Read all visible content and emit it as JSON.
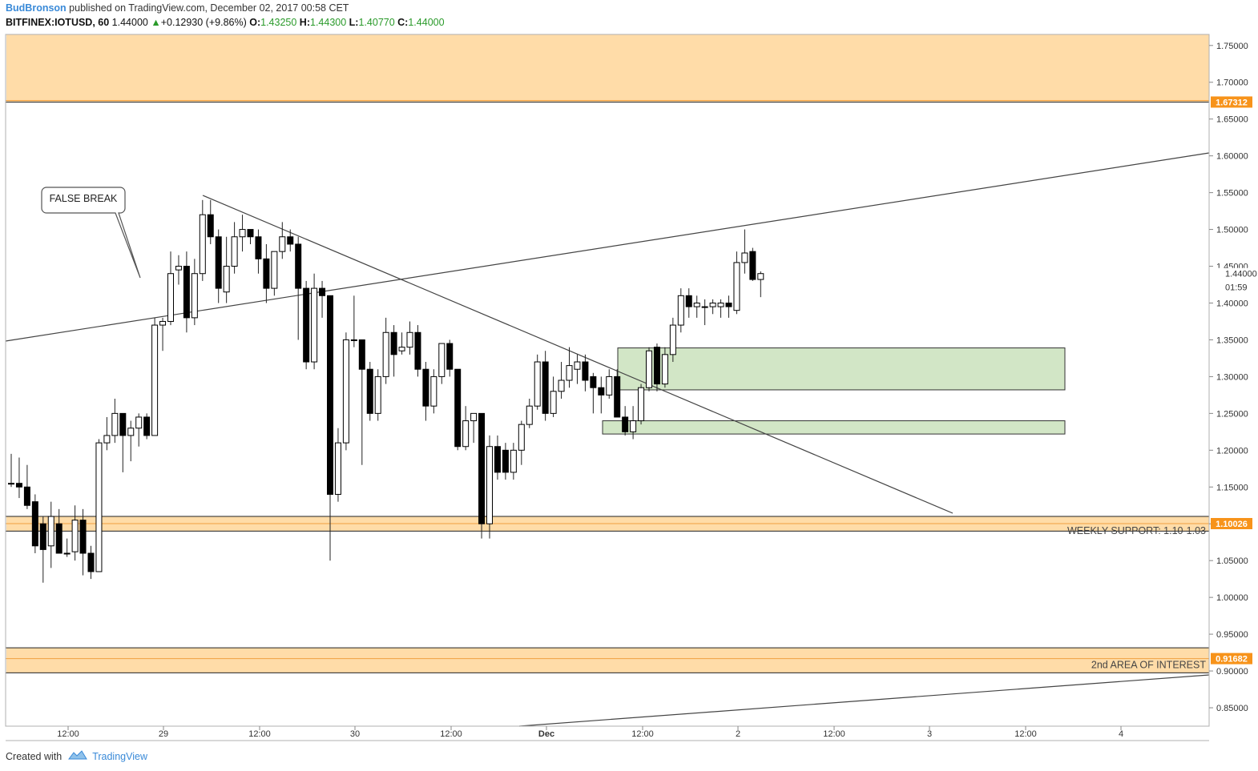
{
  "header": {
    "author": "BudBronson",
    "published_text": " published on TradingView.com, December 02, 2017 00:58 CET",
    "symbol": "BITFINEX:IOTUSD, 60",
    "last": "1.44000",
    "change": "+0.12930 (+9.86%)",
    "o_label": "O:",
    "o_value": "1.43250",
    "h_label": "H:",
    "h_value": "1.44300",
    "l_label": "L:",
    "l_value": "1.40770",
    "c_label": "C:",
    "c_value": "1.44000"
  },
  "footer": {
    "created_with": "Created with",
    "brand": "TradingView"
  },
  "colors": {
    "zone_fill": "#ffdca8",
    "zone_line": "#f0a040",
    "green_fill": "#d2e6c6",
    "price_tag": "#f7931a",
    "candle_up": "#ffffff",
    "candle_down": "#000000",
    "brand": "#3a8ad8"
  },
  "chart_data": {
    "type": "candlestick",
    "y_axis": {
      "ticks": [
        "1.75000",
        "1.70000",
        "1.65000",
        "1.60000",
        "1.55000",
        "1.50000",
        "1.45000",
        "1.40000",
        "1.35000",
        "1.30000",
        "1.25000",
        "1.20000",
        "1.15000",
        "1.10000",
        "1.05000",
        "1.00000",
        "0.95000",
        "0.90000",
        "0.85000"
      ],
      "ylim": [
        0.825,
        1.765
      ]
    },
    "x_axis": {
      "ticks": [
        "12:00",
        "29",
        "12:00",
        "30",
        "12:00",
        "Dec",
        "12:00",
        "2",
        "12:00",
        "3",
        "12:00",
        "4"
      ]
    },
    "price_tags": [
      {
        "value": 1.67312,
        "label": "1.67312"
      },
      {
        "value": 1.10026,
        "label": "1.10026"
      },
      {
        "value": 0.91682,
        "label": "0.91682"
      }
    ],
    "last_price": {
      "value": 1.44,
      "label": "1.44000",
      "countdown": "01:59"
    },
    "zones": [
      {
        "from": 1.67312,
        "to": 1.765,
        "label": ""
      },
      {
        "from": 1.09,
        "to": 1.11,
        "center": 1.10026,
        "label": "WEEKLY SUPPORT: 1.10-1.03"
      },
      {
        "from": 0.8975,
        "to": 0.9315,
        "center": 0.91682,
        "label": "2nd AREA OF INTEREST"
      }
    ],
    "boxes": [
      {
        "from": 1.282,
        "to": 1.339
      },
      {
        "from": 1.222,
        "to": 1.24
      }
    ],
    "annotation": {
      "text": "FALSE BREAK"
    },
    "candles": [
      {
        "o": 1.155,
        "h": 1.195,
        "l": 1.15,
        "c": 1.155
      },
      {
        "o": 1.155,
        "h": 1.19,
        "l": 1.135,
        "c": 1.15
      },
      {
        "o": 1.15,
        "h": 1.18,
        "l": 1.12,
        "c": 1.125
      },
      {
        "o": 1.13,
        "h": 1.14,
        "l": 1.06,
        "c": 1.07
      },
      {
        "o": 1.1,
        "h": 1.11,
        "l": 1.02,
        "c": 1.065
      },
      {
        "o": 1.07,
        "h": 1.13,
        "l": 1.04,
        "c": 1.11
      },
      {
        "o": 1.1,
        "h": 1.12,
        "l": 1.06,
        "c": 1.06
      },
      {
        "o": 1.06,
        "h": 1.08,
        "l": 1.055,
        "c": 1.06
      },
      {
        "o": 1.062,
        "h": 1.125,
        "l": 1.05,
        "c": 1.105
      },
      {
        "o": 1.105,
        "h": 1.12,
        "l": 1.03,
        "c": 1.06
      },
      {
        "o": 1.06,
        "h": 1.07,
        "l": 1.025,
        "c": 1.035
      },
      {
        "o": 1.035,
        "h": 1.215,
        "l": 1.035,
        "c": 1.21
      },
      {
        "o": 1.21,
        "h": 1.245,
        "l": 1.2,
        "c": 1.22
      },
      {
        "o": 1.22,
        "h": 1.27,
        "l": 1.21,
        "c": 1.25
      },
      {
        "o": 1.25,
        "h": 1.25,
        "l": 1.17,
        "c": 1.22
      },
      {
        "o": 1.22,
        "h": 1.24,
        "l": 1.185,
        "c": 1.23
      },
      {
        "o": 1.23,
        "h": 1.25,
        "l": 1.205,
        "c": 1.245
      },
      {
        "o": 1.245,
        "h": 1.25,
        "l": 1.215,
        "c": 1.22
      },
      {
        "o": 1.22,
        "h": 1.38,
        "l": 1.22,
        "c": 1.37
      },
      {
        "o": 1.37,
        "h": 1.38,
        "l": 1.335,
        "c": 1.375
      },
      {
        "o": 1.375,
        "h": 1.47,
        "l": 1.37,
        "c": 1.44
      },
      {
        "o": 1.445,
        "h": 1.465,
        "l": 1.425,
        "c": 1.45
      },
      {
        "o": 1.45,
        "h": 1.47,
        "l": 1.36,
        "c": 1.38
      },
      {
        "o": 1.38,
        "h": 1.46,
        "l": 1.37,
        "c": 1.44
      },
      {
        "o": 1.44,
        "h": 1.54,
        "l": 1.43,
        "c": 1.52
      },
      {
        "o": 1.52,
        "h": 1.54,
        "l": 1.48,
        "c": 1.49
      },
      {
        "o": 1.49,
        "h": 1.5,
        "l": 1.4,
        "c": 1.42
      },
      {
        "o": 1.415,
        "h": 1.49,
        "l": 1.4,
        "c": 1.45
      },
      {
        "o": 1.45,
        "h": 1.51,
        "l": 1.44,
        "c": 1.49
      },
      {
        "o": 1.49,
        "h": 1.52,
        "l": 1.47,
        "c": 1.5
      },
      {
        "o": 1.5,
        "h": 1.5,
        "l": 1.48,
        "c": 1.49
      },
      {
        "o": 1.49,
        "h": 1.5,
        "l": 1.44,
        "c": 1.46
      },
      {
        "o": 1.46,
        "h": 1.48,
        "l": 1.4,
        "c": 1.42
      },
      {
        "o": 1.42,
        "h": 1.47,
        "l": 1.41,
        "c": 1.47
      },
      {
        "o": 1.47,
        "h": 1.51,
        "l": 1.46,
        "c": 1.49
      },
      {
        "o": 1.49,
        "h": 1.5,
        "l": 1.47,
        "c": 1.48
      },
      {
        "o": 1.48,
        "h": 1.49,
        "l": 1.35,
        "c": 1.42
      },
      {
        "o": 1.42,
        "h": 1.43,
        "l": 1.31,
        "c": 1.32
      },
      {
        "o": 1.32,
        "h": 1.44,
        "l": 1.31,
        "c": 1.42
      },
      {
        "o": 1.42,
        "h": 1.43,
        "l": 1.38,
        "c": 1.41
      },
      {
        "o": 1.41,
        "h": 1.41,
        "l": 1.05,
        "c": 1.14
      },
      {
        "o": 1.14,
        "h": 1.23,
        "l": 1.13,
        "c": 1.21
      },
      {
        "o": 1.21,
        "h": 1.36,
        "l": 1.2,
        "c": 1.35
      },
      {
        "o": 1.35,
        "h": 1.41,
        "l": 1.34,
        "c": 1.35
      },
      {
        "o": 1.35,
        "h": 1.35,
        "l": 1.18,
        "c": 1.31
      },
      {
        "o": 1.31,
        "h": 1.32,
        "l": 1.24,
        "c": 1.25
      },
      {
        "o": 1.25,
        "h": 1.31,
        "l": 1.24,
        "c": 1.3
      },
      {
        "o": 1.3,
        "h": 1.38,
        "l": 1.29,
        "c": 1.36
      },
      {
        "o": 1.36,
        "h": 1.37,
        "l": 1.3,
        "c": 1.33
      },
      {
        "o": 1.335,
        "h": 1.36,
        "l": 1.33,
        "c": 1.34
      },
      {
        "o": 1.34,
        "h": 1.375,
        "l": 1.33,
        "c": 1.36
      },
      {
        "o": 1.36,
        "h": 1.37,
        "l": 1.3,
        "c": 1.31
      },
      {
        "o": 1.31,
        "h": 1.32,
        "l": 1.24,
        "c": 1.26
      },
      {
        "o": 1.26,
        "h": 1.31,
        "l": 1.25,
        "c": 1.3
      },
      {
        "o": 1.3,
        "h": 1.34,
        "l": 1.29,
        "c": 1.345
      },
      {
        "o": 1.345,
        "h": 1.35,
        "l": 1.3,
        "c": 1.31
      },
      {
        "o": 1.31,
        "h": 1.31,
        "l": 1.2,
        "c": 1.205
      },
      {
        "o": 1.205,
        "h": 1.26,
        "l": 1.2,
        "c": 1.24
      },
      {
        "o": 1.24,
        "h": 1.25,
        "l": 1.21,
        "c": 1.25
      },
      {
        "o": 1.25,
        "h": 1.25,
        "l": 1.08,
        "c": 1.1
      },
      {
        "o": 1.1,
        "h": 1.22,
        "l": 1.08,
        "c": 1.205
      },
      {
        "o": 1.205,
        "h": 1.22,
        "l": 1.16,
        "c": 1.17
      },
      {
        "o": 1.2,
        "h": 1.21,
        "l": 1.16,
        "c": 1.17
      },
      {
        "o": 1.17,
        "h": 1.21,
        "l": 1.16,
        "c": 1.2
      },
      {
        "o": 1.2,
        "h": 1.24,
        "l": 1.18,
        "c": 1.235
      },
      {
        "o": 1.235,
        "h": 1.27,
        "l": 1.23,
        "c": 1.26
      },
      {
        "o": 1.26,
        "h": 1.33,
        "l": 1.255,
        "c": 1.32
      },
      {
        "o": 1.32,
        "h": 1.335,
        "l": 1.24,
        "c": 1.25
      },
      {
        "o": 1.25,
        "h": 1.3,
        "l": 1.245,
        "c": 1.28
      },
      {
        "o": 1.28,
        "h": 1.32,
        "l": 1.27,
        "c": 1.295
      },
      {
        "o": 1.295,
        "h": 1.34,
        "l": 1.285,
        "c": 1.315
      },
      {
        "o": 1.31,
        "h": 1.33,
        "l": 1.29,
        "c": 1.32
      },
      {
        "o": 1.32,
        "h": 1.33,
        "l": 1.28,
        "c": 1.295
      },
      {
        "o": 1.3,
        "h": 1.305,
        "l": 1.25,
        "c": 1.285
      },
      {
        "o": 1.285,
        "h": 1.3,
        "l": 1.25,
        "c": 1.275
      },
      {
        "o": 1.275,
        "h": 1.31,
        "l": 1.27,
        "c": 1.3
      },
      {
        "o": 1.3,
        "h": 1.31,
        "l": 1.25,
        "c": 1.245
      },
      {
        "o": 1.245,
        "h": 1.26,
        "l": 1.22,
        "c": 1.225
      },
      {
        "o": 1.225,
        "h": 1.26,
        "l": 1.215,
        "c": 1.24
      },
      {
        "o": 1.24,
        "h": 1.29,
        "l": 1.235,
        "c": 1.285
      },
      {
        "o": 1.285,
        "h": 1.34,
        "l": 1.28,
        "c": 1.335
      },
      {
        "o": 1.34,
        "h": 1.345,
        "l": 1.28,
        "c": 1.29
      },
      {
        "o": 1.29,
        "h": 1.34,
        "l": 1.285,
        "c": 1.33
      },
      {
        "o": 1.33,
        "h": 1.38,
        "l": 1.32,
        "c": 1.37
      },
      {
        "o": 1.37,
        "h": 1.42,
        "l": 1.36,
        "c": 1.41
      },
      {
        "o": 1.41,
        "h": 1.42,
        "l": 1.38,
        "c": 1.395
      },
      {
        "o": 1.395,
        "h": 1.41,
        "l": 1.38,
        "c": 1.4
      },
      {
        "o": 1.395,
        "h": 1.405,
        "l": 1.37,
        "c": 1.395
      },
      {
        "o": 1.395,
        "h": 1.405,
        "l": 1.385,
        "c": 1.4
      },
      {
        "o": 1.395,
        "h": 1.405,
        "l": 1.38,
        "c": 1.4
      },
      {
        "o": 1.4,
        "h": 1.41,
        "l": 1.38,
        "c": 1.395
      },
      {
        "o": 1.39,
        "h": 1.47,
        "l": 1.385,
        "c": 1.455
      },
      {
        "o": 1.455,
        "h": 1.5,
        "l": 1.44,
        "c": 1.468
      },
      {
        "o": 1.47,
        "h": 1.475,
        "l": 1.43,
        "c": 1.432
      },
      {
        "o": 1.432,
        "h": 1.443,
        "l": 1.408,
        "c": 1.44
      }
    ]
  }
}
